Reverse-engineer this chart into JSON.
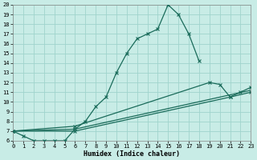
{
  "xlabel": "Humidex (Indice chaleur)",
  "bg_color": "#c8ece6",
  "grid_color": "#a0d4cc",
  "line_color": "#1a6b5a",
  "xmin": 0,
  "xmax": 23,
  "ymin": 6,
  "ymax": 20,
  "line_main": {
    "x": [
      0,
      1,
      2,
      3,
      4,
      5,
      6,
      7,
      8,
      9,
      10,
      11,
      12,
      13,
      14,
      15,
      16,
      17,
      18
    ],
    "y": [
      7,
      6.5,
      6,
      6,
      6,
      6,
      7.2,
      8.0,
      9.5,
      10.5,
      13.0,
      15.0,
      16.5,
      17.0,
      17.5,
      20.0,
      19.0,
      17.0,
      14.2
    ]
  },
  "line_a": {
    "x": [
      0,
      6,
      19,
      20,
      21,
      22,
      23
    ],
    "y": [
      7,
      7.5,
      12.0,
      11.8,
      10.5,
      11.0,
      11.5
    ]
  },
  "line_b": {
    "x": [
      0,
      6,
      23
    ],
    "y": [
      7,
      7.2,
      11.2
    ]
  },
  "line_c": {
    "x": [
      0,
      6,
      21,
      23
    ],
    "y": [
      7,
      7.0,
      10.5,
      11.0
    ]
  },
  "yticks": [
    6,
    7,
    8,
    9,
    10,
    11,
    12,
    13,
    14,
    15,
    16,
    17,
    18,
    19,
    20
  ],
  "xticks": [
    0,
    1,
    2,
    3,
    4,
    5,
    6,
    7,
    8,
    9,
    10,
    11,
    12,
    13,
    14,
    15,
    16,
    17,
    18,
    19,
    20,
    21,
    22,
    23
  ]
}
